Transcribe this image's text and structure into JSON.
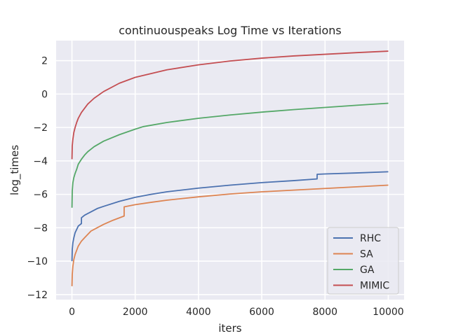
{
  "chart_data": {
    "type": "line",
    "title": "continuouspeaks Log Time vs Iterations",
    "xlabel": "iters",
    "ylabel": "log_times",
    "xlim": [
      -500,
      10500
    ],
    "ylim": [
      -12.3,
      3.2
    ],
    "xticks": [
      0,
      2000,
      4000,
      6000,
      8000,
      10000
    ],
    "yticks": [
      -12,
      -10,
      -8,
      -6,
      -4,
      -2,
      0,
      2
    ],
    "grid": true,
    "legend_position": "lower-right",
    "background": "#eaeaf2",
    "series": [
      {
        "name": "RHC",
        "color": "#4c72b0",
        "points": [
          [
            1,
            -10.0
          ],
          [
            10,
            -9.3
          ],
          [
            30,
            -8.9
          ],
          [
            60,
            -8.6
          ],
          [
            100,
            -8.3
          ],
          [
            150,
            -8.1
          ],
          [
            200,
            -7.9
          ],
          [
            300,
            -7.75
          ],
          [
            301,
            -7.4
          ],
          [
            400,
            -7.25
          ],
          [
            600,
            -7.05
          ],
          [
            800,
            -6.85
          ],
          [
            1000,
            -6.72
          ],
          [
            1500,
            -6.42
          ],
          [
            2000,
            -6.18
          ],
          [
            2500,
            -6.0
          ],
          [
            3000,
            -5.85
          ],
          [
            4000,
            -5.63
          ],
          [
            5000,
            -5.45
          ],
          [
            6000,
            -5.3
          ],
          [
            7000,
            -5.18
          ],
          [
            7750,
            -5.08
          ],
          [
            7751,
            -4.8
          ],
          [
            8000,
            -4.78
          ],
          [
            9000,
            -4.72
          ],
          [
            10000,
            -4.65
          ]
        ]
      },
      {
        "name": "SA",
        "color": "#dd8452",
        "points": [
          [
            1,
            -11.5
          ],
          [
            10,
            -10.8
          ],
          [
            30,
            -10.3
          ],
          [
            60,
            -9.9
          ],
          [
            100,
            -9.6
          ],
          [
            200,
            -9.1
          ],
          [
            300,
            -8.8
          ],
          [
            400,
            -8.6
          ],
          [
            600,
            -8.2
          ],
          [
            800,
            -8.0
          ],
          [
            1000,
            -7.8
          ],
          [
            1300,
            -7.55
          ],
          [
            1650,
            -7.3
          ],
          [
            1651,
            -6.75
          ],
          [
            2000,
            -6.62
          ],
          [
            2500,
            -6.48
          ],
          [
            3000,
            -6.35
          ],
          [
            4000,
            -6.15
          ],
          [
            5000,
            -5.98
          ],
          [
            6000,
            -5.85
          ],
          [
            7000,
            -5.75
          ],
          [
            8000,
            -5.65
          ],
          [
            9000,
            -5.55
          ],
          [
            10000,
            -5.45
          ]
        ]
      },
      {
        "name": "GA",
        "color": "#55a868",
        "points": [
          [
            1,
            -6.8
          ],
          [
            10,
            -5.8
          ],
          [
            30,
            -5.3
          ],
          [
            60,
            -5.0
          ],
          [
            100,
            -4.75
          ],
          [
            150,
            -4.5
          ],
          [
            200,
            -4.2
          ],
          [
            300,
            -3.9
          ],
          [
            400,
            -3.65
          ],
          [
            500,
            -3.45
          ],
          [
            700,
            -3.15
          ],
          [
            1000,
            -2.82
          ],
          [
            1500,
            -2.43
          ],
          [
            2000,
            -2.1
          ],
          [
            2250,
            -1.95
          ],
          [
            3000,
            -1.7
          ],
          [
            4000,
            -1.45
          ],
          [
            5000,
            -1.25
          ],
          [
            6000,
            -1.08
          ],
          [
            7000,
            -0.93
          ],
          [
            8000,
            -0.8
          ],
          [
            9000,
            -0.67
          ],
          [
            10000,
            -0.55
          ]
        ]
      },
      {
        "name": "MIMIC",
        "color": "#c44e52",
        "points": [
          [
            1,
            -3.9
          ],
          [
            10,
            -3.1
          ],
          [
            30,
            -2.7
          ],
          [
            60,
            -2.3
          ],
          [
            100,
            -2.0
          ],
          [
            150,
            -1.7
          ],
          [
            200,
            -1.45
          ],
          [
            300,
            -1.1
          ],
          [
            400,
            -0.85
          ],
          [
            500,
            -0.6
          ],
          [
            700,
            -0.25
          ],
          [
            1000,
            0.15
          ],
          [
            1500,
            0.65
          ],
          [
            2000,
            1.0
          ],
          [
            3000,
            1.45
          ],
          [
            4000,
            1.75
          ],
          [
            5000,
            1.98
          ],
          [
            6000,
            2.15
          ],
          [
            7000,
            2.28
          ],
          [
            8000,
            2.38
          ],
          [
            9000,
            2.48
          ],
          [
            10000,
            2.57
          ]
        ]
      }
    ]
  }
}
